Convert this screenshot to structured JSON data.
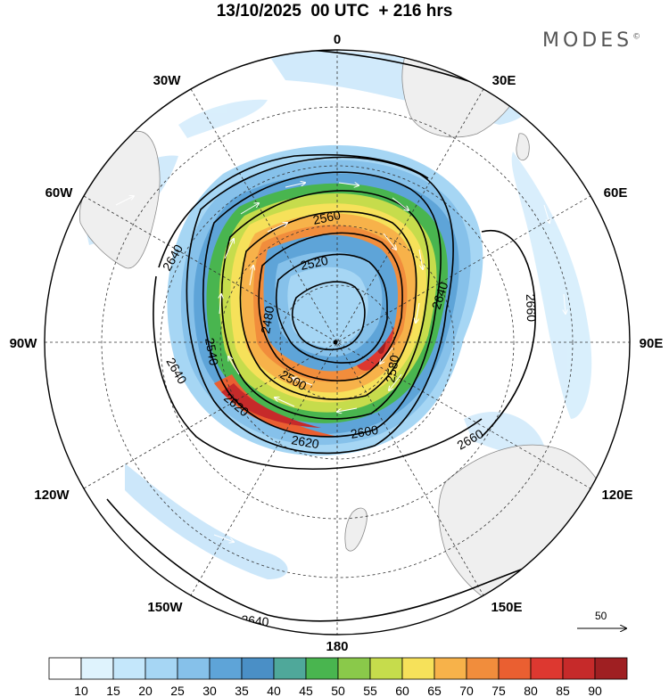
{
  "header": {
    "title": "13/10/2025  00 UTC  + 216 hrs",
    "brand": "MODES",
    "brand_mark": "©"
  },
  "map": {
    "projection": "south-polar-stereographic",
    "longitude_labels": {
      "top": "0",
      "t30w": "30W",
      "t30e": "30E",
      "t60w": "60W",
      "t60e": "60E",
      "w90": "90W",
      "e90": "90E",
      "b120w": "120W",
      "b120e": "120E",
      "b150w": "150W",
      "b150e": "150E",
      "bottom": "180"
    },
    "contour_labels": {
      "c2560": "2560",
      "c2520": "2520",
      "c2640a": "2640",
      "c2640b": "2640",
      "c2540": "2540",
      "c2480": "2480",
      "c2500": "2500",
      "c2580": "2580",
      "c2620a": "2620",
      "c2620b": "2620",
      "c2600": "2600",
      "c2640c": "2640",
      "c2660a": "2660",
      "c2660b": "2660",
      "c2640d": "2640"
    },
    "contour_interval": 20,
    "jet_core_max": 90,
    "vector_reference": "50"
  },
  "colorbar": {
    "ticks": [
      "10",
      "15",
      "20",
      "25",
      "30",
      "35",
      "40",
      "45",
      "50",
      "55",
      "60",
      "65",
      "70",
      "75",
      "80",
      "85",
      "90"
    ],
    "colors": [
      "#ffffff",
      "#dff3fd",
      "#c4e7fb",
      "#a6d6f4",
      "#86c1ea",
      "#5ea4d8",
      "#4a8fc6",
      "#4fa89a",
      "#49b54f",
      "#8ac94a",
      "#c6dc4c",
      "#f6e15a",
      "#f7b24a",
      "#f18d3c",
      "#ea5f31",
      "#dd3830",
      "#c62a2a",
      "#9f1f22"
    ]
  }
}
